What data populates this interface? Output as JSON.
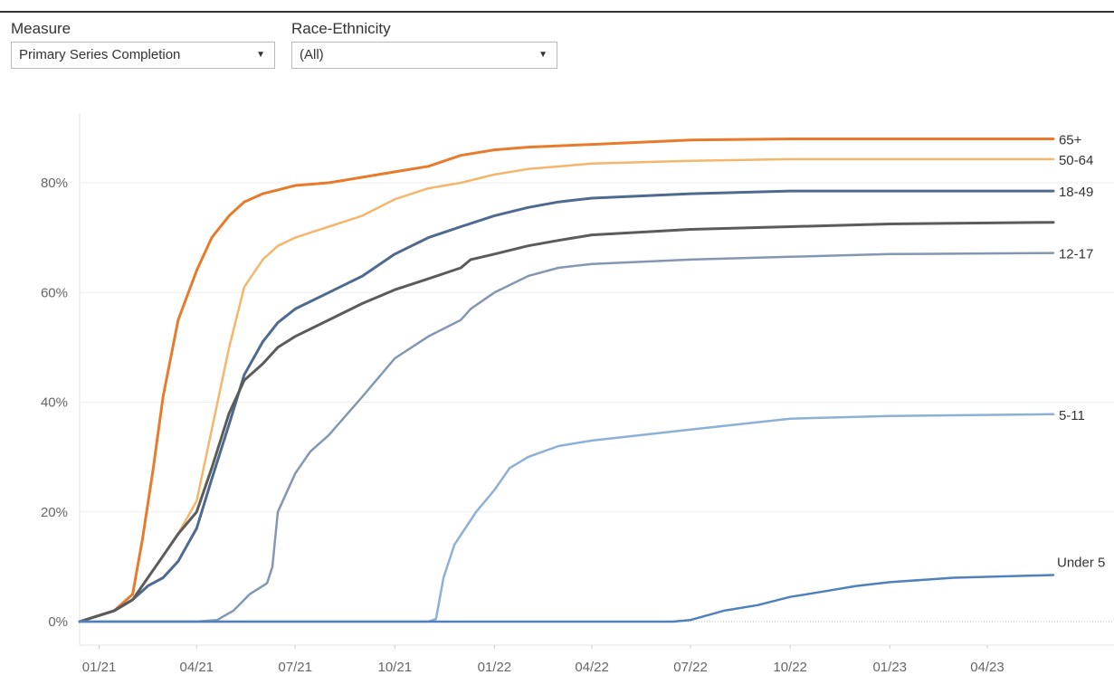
{
  "filters": {
    "measure": {
      "label": "Measure",
      "value": "Primary Series Completion",
      "arrow": "▼"
    },
    "race": {
      "label": "Race-Ethnicity",
      "value": "(All)",
      "arrow": "▼"
    }
  },
  "chart_data": {
    "type": "line",
    "title": "",
    "xlabel": "",
    "ylabel": "",
    "ylim": [
      0,
      0.92
    ],
    "yticks": [
      0,
      0.2,
      0.4,
      0.6,
      0.8
    ],
    "ytick_labels": [
      "0%",
      "20%",
      "40%",
      "60%",
      "80%"
    ],
    "xticks": [
      "2021-01-01",
      "2021-04-01",
      "2021-07-01",
      "2021-10-01",
      "2022-01-01",
      "2022-04-01",
      "2022-07-01",
      "2022-10-01",
      "2023-01-01",
      "2023-04-01"
    ],
    "xtick_labels": [
      "01/21",
      "04/21",
      "07/21",
      "10/21",
      "01/22",
      "04/22",
      "07/22",
      "10/22",
      "01/23",
      "04/23"
    ],
    "xlim": [
      "2020-12-14",
      "2023-07-27"
    ],
    "grid": "horizontal",
    "legend": "direct labels at line ends",
    "series": [
      {
        "name": "65+",
        "color": "#e87b2b",
        "width": 3,
        "points": [
          [
            "2020-12-14",
            0
          ],
          [
            "2021-01-15",
            0.02
          ],
          [
            "2021-02-01",
            0.05
          ],
          [
            "2021-02-10",
            0.15
          ],
          [
            "2021-02-20",
            0.28
          ],
          [
            "2021-03-01",
            0.41
          ],
          [
            "2021-03-15",
            0.55
          ],
          [
            "2021-04-01",
            0.64
          ],
          [
            "2021-04-15",
            0.7
          ],
          [
            "2021-05-01",
            0.74
          ],
          [
            "2021-05-15",
            0.765
          ],
          [
            "2021-06-01",
            0.78
          ],
          [
            "2021-06-15",
            0.787
          ],
          [
            "2021-07-01",
            0.795
          ],
          [
            "2021-08-01",
            0.8
          ],
          [
            "2021-09-01",
            0.81
          ],
          [
            "2021-10-01",
            0.82
          ],
          [
            "2021-11-01",
            0.83
          ],
          [
            "2021-12-01",
            0.85
          ],
          [
            "2022-01-01",
            0.86
          ],
          [
            "2022-02-01",
            0.865
          ],
          [
            "2022-04-01",
            0.87
          ],
          [
            "2022-07-01",
            0.878
          ],
          [
            "2022-10-01",
            0.88
          ],
          [
            "2023-01-01",
            0.88
          ],
          [
            "2023-06-01",
            0.88
          ]
        ]
      },
      {
        "name": "50-64",
        "color": "#f5b66c",
        "width": 2.5,
        "points": [
          [
            "2020-12-14",
            0
          ],
          [
            "2021-01-15",
            0.02
          ],
          [
            "2021-02-01",
            0.04
          ],
          [
            "2021-02-15",
            0.08
          ],
          [
            "2021-03-01",
            0.12
          ],
          [
            "2021-03-15",
            0.16
          ],
          [
            "2021-04-01",
            0.22
          ],
          [
            "2021-04-15",
            0.35
          ],
          [
            "2021-05-01",
            0.5
          ],
          [
            "2021-05-15",
            0.61
          ],
          [
            "2021-06-01",
            0.66
          ],
          [
            "2021-06-15",
            0.685
          ],
          [
            "2021-07-01",
            0.7
          ],
          [
            "2021-08-01",
            0.72
          ],
          [
            "2021-09-01",
            0.74
          ],
          [
            "2021-10-01",
            0.77
          ],
          [
            "2021-11-01",
            0.79
          ],
          [
            "2021-12-01",
            0.8
          ],
          [
            "2022-01-01",
            0.815
          ],
          [
            "2022-02-01",
            0.825
          ],
          [
            "2022-04-01",
            0.835
          ],
          [
            "2022-07-01",
            0.84
          ],
          [
            "2022-10-01",
            0.843
          ],
          [
            "2023-06-01",
            0.843
          ]
        ]
      },
      {
        "name": "18-49",
        "color": "#4e6a8f",
        "width": 3,
        "points": [
          [
            "2020-12-14",
            0
          ],
          [
            "2021-01-15",
            0.02
          ],
          [
            "2021-02-01",
            0.04
          ],
          [
            "2021-02-15",
            0.065
          ],
          [
            "2021-03-01",
            0.08
          ],
          [
            "2021-03-15",
            0.11
          ],
          [
            "2021-04-01",
            0.17
          ],
          [
            "2021-04-15",
            0.26
          ],
          [
            "2021-05-01",
            0.36
          ],
          [
            "2021-05-15",
            0.45
          ],
          [
            "2021-06-01",
            0.51
          ],
          [
            "2021-06-15",
            0.545
          ],
          [
            "2021-07-01",
            0.57
          ],
          [
            "2021-08-01",
            0.6
          ],
          [
            "2021-09-01",
            0.63
          ],
          [
            "2021-10-01",
            0.67
          ],
          [
            "2021-11-01",
            0.7
          ],
          [
            "2021-12-01",
            0.72
          ],
          [
            "2022-01-01",
            0.74
          ],
          [
            "2022-02-01",
            0.755
          ],
          [
            "2022-03-01",
            0.765
          ],
          [
            "2022-04-01",
            0.772
          ],
          [
            "2022-07-01",
            0.78
          ],
          [
            "2022-10-01",
            0.785
          ],
          [
            "2023-06-01",
            0.785
          ]
        ]
      },
      {
        "name": "",
        "color": "#5b5b5b",
        "width": 3,
        "points": [
          [
            "2020-12-14",
            0
          ],
          [
            "2021-01-15",
            0.02
          ],
          [
            "2021-02-01",
            0.04
          ],
          [
            "2021-02-15",
            0.08
          ],
          [
            "2021-03-01",
            0.12
          ],
          [
            "2021-03-15",
            0.16
          ],
          [
            "2021-04-01",
            0.2
          ],
          [
            "2021-04-15",
            0.28
          ],
          [
            "2021-05-01",
            0.38
          ],
          [
            "2021-05-15",
            0.44
          ],
          [
            "2021-06-01",
            0.47
          ],
          [
            "2021-06-15",
            0.5
          ],
          [
            "2021-07-01",
            0.52
          ],
          [
            "2021-08-01",
            0.55
          ],
          [
            "2021-09-01",
            0.58
          ],
          [
            "2021-10-01",
            0.605
          ],
          [
            "2021-11-01",
            0.625
          ],
          [
            "2021-12-01",
            0.645
          ],
          [
            "2021-12-10",
            0.66
          ],
          [
            "2022-01-01",
            0.67
          ],
          [
            "2022-02-01",
            0.685
          ],
          [
            "2022-03-01",
            0.695
          ],
          [
            "2022-04-01",
            0.705
          ],
          [
            "2022-07-01",
            0.715
          ],
          [
            "2022-10-01",
            0.72
          ],
          [
            "2023-01-01",
            0.725
          ],
          [
            "2023-06-01",
            0.728
          ]
        ]
      },
      {
        "name": "12-17",
        "color": "#8397b2",
        "width": 2.5,
        "points": [
          [
            "2020-12-14",
            0
          ],
          [
            "2021-04-01",
            0
          ],
          [
            "2021-04-20",
            0.003
          ],
          [
            "2021-05-05",
            0.02
          ],
          [
            "2021-05-20",
            0.05
          ],
          [
            "2021-06-05",
            0.07
          ],
          [
            "2021-06-10",
            0.1
          ],
          [
            "2021-06-15",
            0.2
          ],
          [
            "2021-07-01",
            0.27
          ],
          [
            "2021-07-15",
            0.31
          ],
          [
            "2021-08-01",
            0.34
          ],
          [
            "2021-09-01",
            0.41
          ],
          [
            "2021-10-01",
            0.48
          ],
          [
            "2021-11-01",
            0.52
          ],
          [
            "2021-12-01",
            0.55
          ],
          [
            "2021-12-10",
            0.57
          ],
          [
            "2022-01-01",
            0.6
          ],
          [
            "2022-02-01",
            0.63
          ],
          [
            "2022-03-01",
            0.645
          ],
          [
            "2022-04-01",
            0.652
          ],
          [
            "2022-07-01",
            0.66
          ],
          [
            "2022-10-01",
            0.665
          ],
          [
            "2023-01-01",
            0.67
          ],
          [
            "2023-06-01",
            0.672
          ]
        ]
      },
      {
        "name": "5-11",
        "color": "#8cb0d6",
        "width": 2.5,
        "points": [
          [
            "2020-12-14",
            0
          ],
          [
            "2021-11-01",
            0
          ],
          [
            "2021-11-08",
            0.005
          ],
          [
            "2021-11-15",
            0.08
          ],
          [
            "2021-11-25",
            0.14
          ],
          [
            "2021-12-15",
            0.2
          ],
          [
            "2022-01-01",
            0.24
          ],
          [
            "2022-01-15",
            0.28
          ],
          [
            "2022-02-01",
            0.3
          ],
          [
            "2022-03-01",
            0.32
          ],
          [
            "2022-04-01",
            0.33
          ],
          [
            "2022-07-01",
            0.35
          ],
          [
            "2022-10-01",
            0.37
          ],
          [
            "2023-01-01",
            0.375
          ],
          [
            "2023-06-01",
            0.378
          ]
        ]
      },
      {
        "name": "Under 5",
        "color": "#4f81bd",
        "width": 2.5,
        "points": [
          [
            "2020-12-14",
            0
          ],
          [
            "2022-06-15",
            0
          ],
          [
            "2022-07-01",
            0.003
          ],
          [
            "2022-08-01",
            0.02
          ],
          [
            "2022-09-01",
            0.03
          ],
          [
            "2022-10-01",
            0.045
          ],
          [
            "2022-11-01",
            0.055
          ],
          [
            "2022-12-01",
            0.065
          ],
          [
            "2023-01-01",
            0.072
          ],
          [
            "2023-03-01",
            0.08
          ],
          [
            "2023-06-01",
            0.085
          ]
        ]
      }
    ]
  }
}
